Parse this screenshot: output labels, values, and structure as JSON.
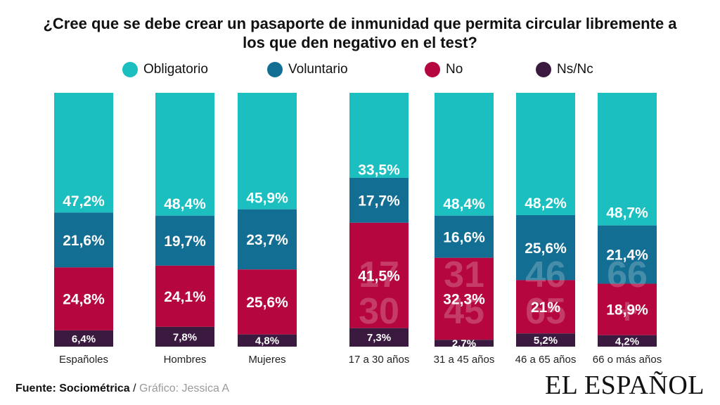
{
  "title_line1": "¿Cree que se debe crear un pasaporte de inmunidad que permita circular libremente a",
  "title_line2": "los que den negativo en el  test?",
  "colors": {
    "obligatorio": "#1bbfbf",
    "voluntario": "#136e93",
    "no": "#b5063f",
    "nsnc": "#3b1a3f"
  },
  "legend": [
    {
      "key": "obligatorio",
      "label": "Obligatorio"
    },
    {
      "key": "voluntario",
      "label": "Voluntario"
    },
    {
      "key": "no",
      "label": "No"
    },
    {
      "key": "nsnc",
      "label": "Ns/Nc"
    }
  ],
  "chart_data": {
    "type": "bar",
    "stacked": true,
    "categories": [
      "Españoles",
      "Hombres",
      "Mujeres",
      "17 a 30 años",
      "31 a 45 años",
      "46 a 65 años",
      "66 o más años"
    ],
    "series": [
      {
        "name": "Obligatorio",
        "values": [
          47.2,
          48.4,
          45.9,
          33.5,
          48.4,
          48.2,
          48.7
        ],
        "labels": [
          "47,2%",
          "48,4%",
          "45,9%",
          "33,5%",
          "48,4%",
          "48,2%",
          "48,7%"
        ]
      },
      {
        "name": "Voluntario",
        "values": [
          21.6,
          19.7,
          23.7,
          17.7,
          16.6,
          25.6,
          21.4
        ],
        "labels": [
          "21,6%",
          "19,7%",
          "23,7%",
          "17,7%",
          "16,6%",
          "25,6%",
          "21,4%"
        ]
      },
      {
        "name": "No",
        "values": [
          24.8,
          24.1,
          25.6,
          41.5,
          32.3,
          21,
          18.9
        ],
        "labels": [
          "24,8%",
          "24,1%",
          "25,6%",
          "41,5%",
          "32,3%",
          "21%",
          "18,9%"
        ]
      },
      {
        "name": "Ns/Nc",
        "values": [
          6.4,
          7.8,
          4.8,
          7.3,
          2.7,
          5.2,
          4.2
        ],
        "labels": [
          "6,4%",
          "7,8%",
          "4,8%",
          "7,3%",
          "2,7%",
          "5,2%",
          "4,2%"
        ]
      }
    ],
    "watermarks": [
      "",
      "",
      "",
      "17\n30",
      "31\n45",
      "46\n65",
      "66\n+"
    ]
  },
  "footer": {
    "source": "Fuente: Sociométrica",
    "separator": " / ",
    "credit": "Gráfico: Jessica A"
  },
  "brand": "EL ESPAÑOL"
}
